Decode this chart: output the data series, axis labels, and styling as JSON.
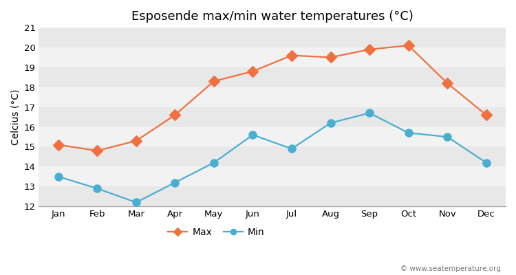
{
  "title": "Esposende max/min water temperatures (°C)",
  "ylabel": "Celcius (°C)",
  "months": [
    "Jan",
    "Feb",
    "Mar",
    "Apr",
    "May",
    "Jun",
    "Jul",
    "Aug",
    "Sep",
    "Oct",
    "Nov",
    "Dec"
  ],
  "max_values": [
    15.1,
    14.8,
    15.3,
    16.6,
    18.3,
    18.8,
    19.6,
    19.5,
    19.9,
    20.1,
    18.2,
    16.6
  ],
  "min_values": [
    13.5,
    12.9,
    12.2,
    13.2,
    14.2,
    15.6,
    14.9,
    16.2,
    16.7,
    15.7,
    15.5,
    14.2
  ],
  "max_color": "#f07040",
  "min_color": "#4aaed0",
  "bg_color": "#ffffff",
  "plot_bg_color": "#ffffff",
  "stripe_color_dark": "#e8e8e8",
  "stripe_color_light": "#f2f2f2",
  "ylim": [
    12,
    21
  ],
  "yticks": [
    12,
    13,
    14,
    15,
    16,
    17,
    18,
    19,
    20,
    21
  ],
  "grid_color": "#cccccc",
  "line_width": 1.6,
  "marker_size_max": 8,
  "marker_size_min": 8,
  "watermark": "© www.seatemperature.org",
  "legend_labels": [
    "Max",
    "Min"
  ],
  "title_fontsize": 13,
  "axis_label_fontsize": 10,
  "tick_fontsize": 9.5
}
